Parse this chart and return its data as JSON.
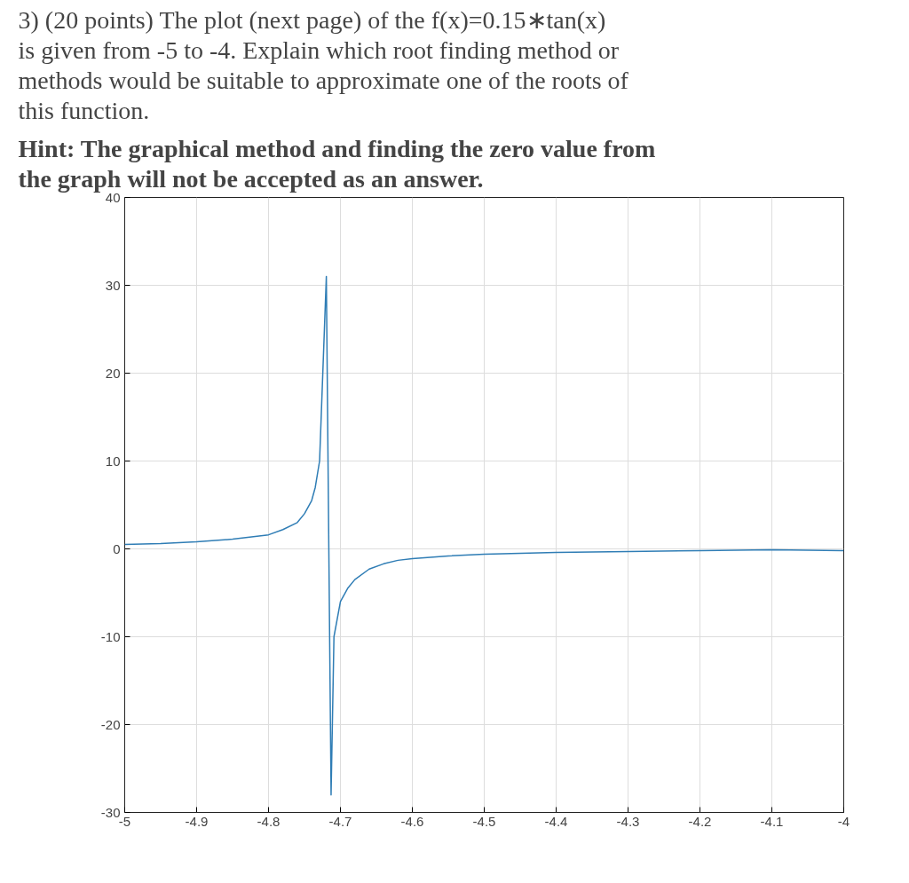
{
  "chart_data": {
    "type": "line",
    "title": "3) (20 points) The plot (next page) of the f(x)=0.15∗tan(x) is given from -5 to -4. Explain which root finding method or methods would be suitable to approximate one of the roots of this function.",
    "subtitle": "Hint: The graphical method and finding the zero value from the graph will not be accepted as an answer.",
    "x": [
      -5,
      -4.95,
      -4.9,
      -4.85,
      -4.8,
      -4.78,
      -4.76,
      -4.75,
      -4.74,
      -4.735,
      -4.729,
      -4.7196,
      -4.713,
      -4.709,
      -4.7,
      -4.69,
      -4.68,
      -4.66,
      -4.64,
      -4.62,
      -4.6,
      -4.55,
      -4.5,
      -4.4,
      -4.3,
      -4.2,
      -4.1,
      -4
    ],
    "series": [
      {
        "color": "#2f7db5",
        "values": [
          0.5,
          0.6,
          0.8,
          1.1,
          1.6,
          2.2,
          3.0,
          4.0,
          5.5,
          7.0,
          10,
          31,
          -28,
          -10,
          -6,
          -4.5,
          -3.5,
          -2.3,
          -1.7,
          -1.3,
          -1.1,
          -0.8,
          -0.6,
          -0.4,
          -0.3,
          -0.2,
          -0.1,
          -0.2
        ]
      }
    ],
    "xlim": [
      -5,
      -4
    ],
    "ylim": [
      -30,
      40
    ],
    "xticks": [
      -5,
      -4.9,
      -4.8,
      -4.7,
      -4.6,
      -4.5,
      -4.4,
      -4.3,
      -4.2,
      -4.1,
      -4
    ],
    "yticks": [
      -30,
      -20,
      -10,
      0,
      10,
      20,
      30,
      40
    ],
    "grid": true,
    "marker": "none",
    "line_style": "solid"
  }
}
